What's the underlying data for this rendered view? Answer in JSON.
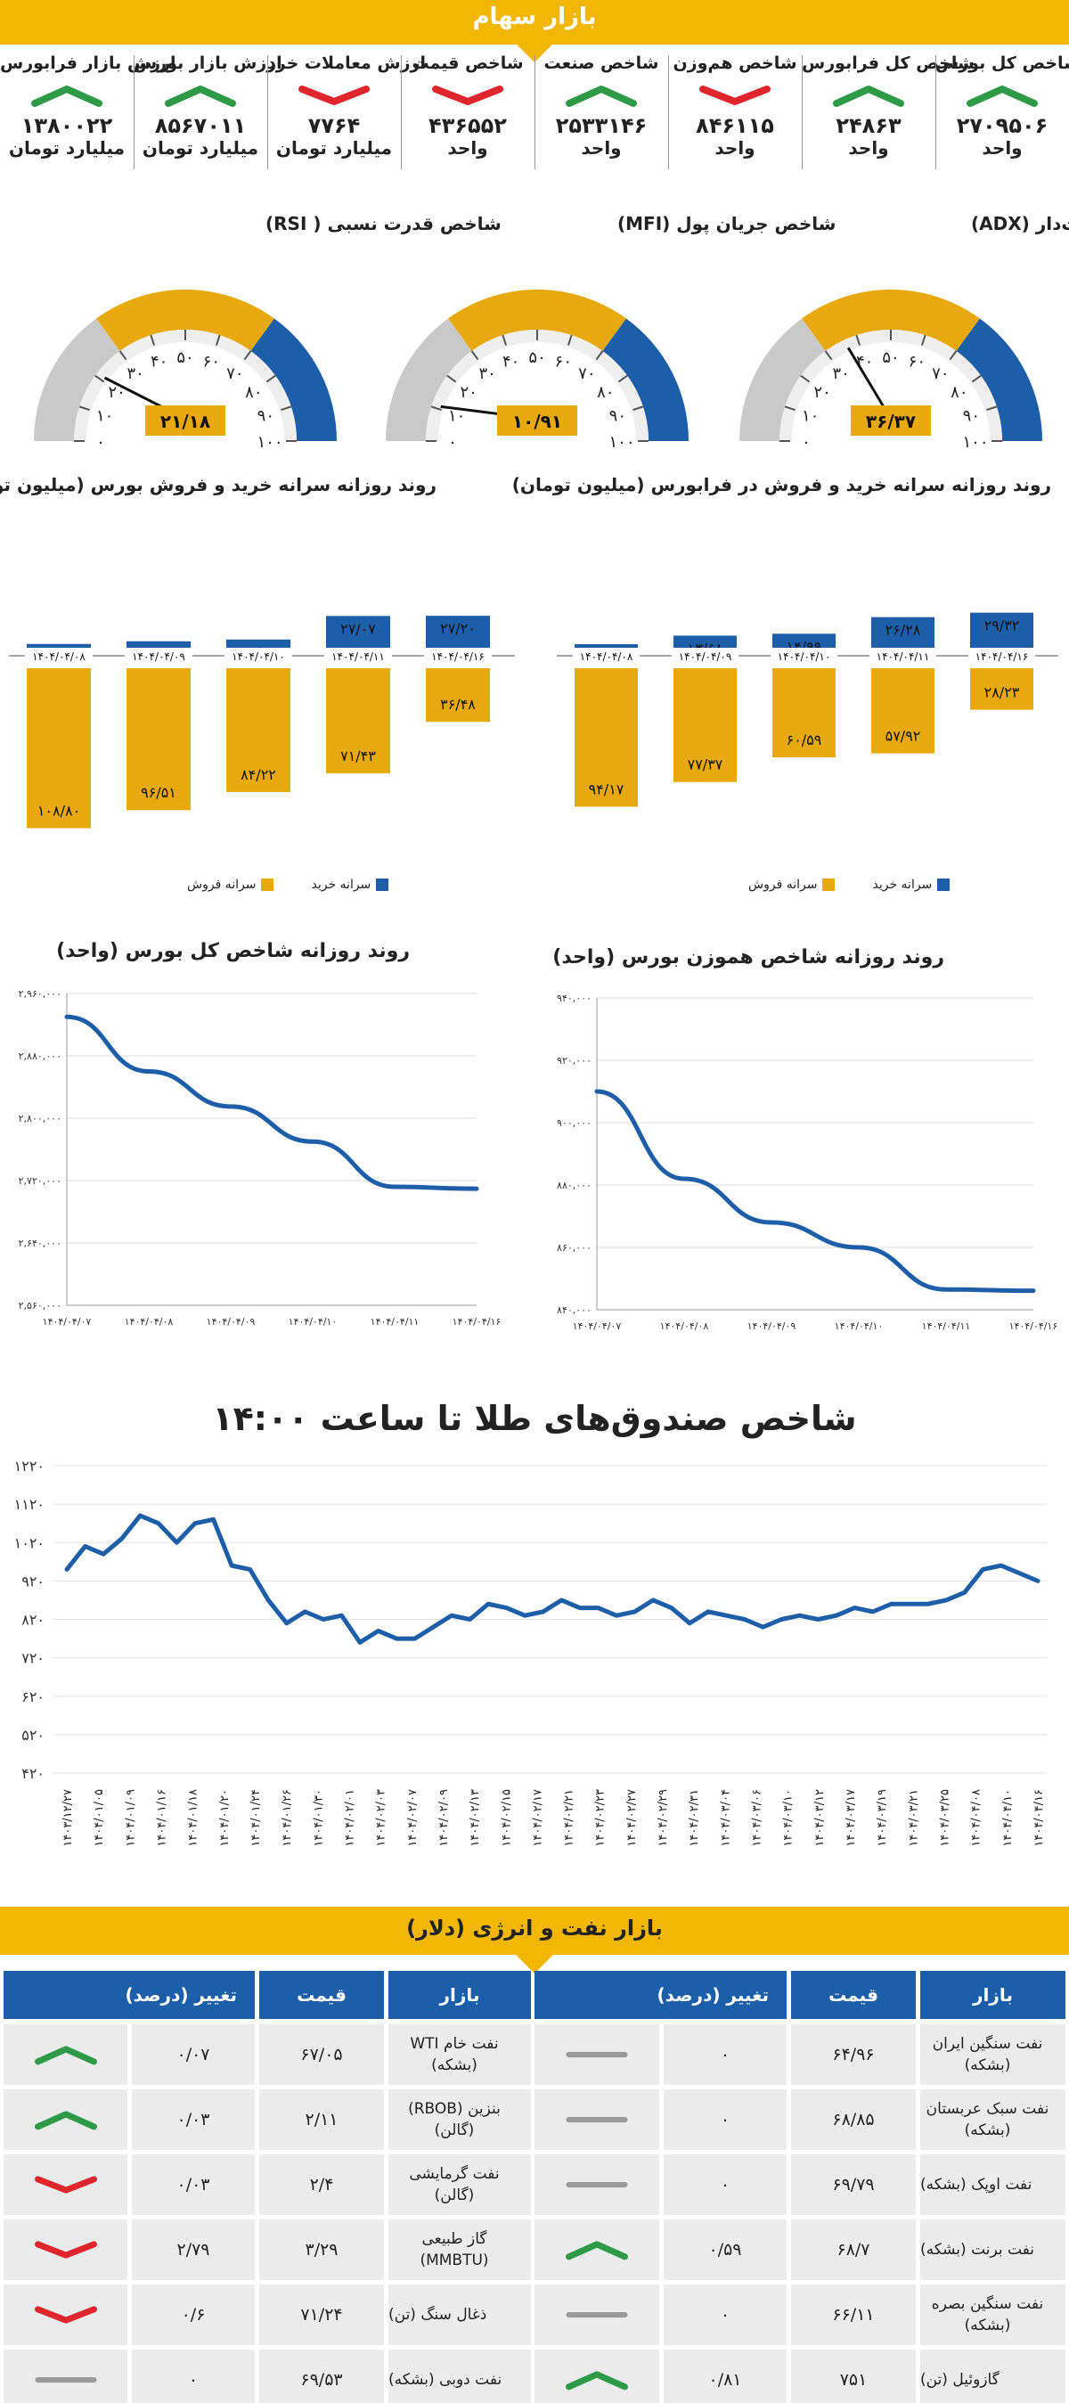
{
  "stock_market": {
    "title": "بازار سهام",
    "indices": [
      {
        "label": "شاخص کل بورس",
        "value": "۲۷۰۹۵۰۶",
        "unit": "واحد",
        "trend": "up"
      },
      {
        "label": "شاخص کل فرابورس",
        "value": "۲۴۸۶۳",
        "unit": "واحد",
        "trend": "up"
      },
      {
        "label": "شاخص هم‌وزن",
        "value": "۸۴۶۱۱۵",
        "unit": "واحد",
        "trend": "down"
      },
      {
        "label": "شاخص صنعت",
        "value": "۲۵۳۳۱۴۶",
        "unit": "واحد",
        "trend": "up"
      },
      {
        "label": "شاخص قیمت",
        "value": "۴۳۶۵۵۲",
        "unit": "واحد",
        "trend": "down"
      },
      {
        "label": "ارزش معاملات خرد",
        "value": "۷۷۶۴",
        "unit": "میلیارد تومان",
        "trend": "down"
      },
      {
        "label": "ارزش بازار بورس",
        "value": "۸۵۶۷۰۱۱",
        "unit": "میلیارد تومان",
        "trend": "up"
      },
      {
        "label": "ارزش بازار فرابورس",
        "value": "۱۳۸۰۰۲۲",
        "unit": "میلیارد تومان",
        "trend": "up"
      }
    ]
  },
  "gauges": [
    {
      "title": "شاخص میانگین حرکت جهت‌دار (ADX)",
      "value_label": "۳۶/۳۷",
      "value": 36.37,
      "ticks": [
        "۰",
        "۱۰",
        "۲۰",
        "۳۰",
        "۴۰",
        "۵۰",
        "۶۰",
        "۷۰",
        "۸۰",
        "۹۰",
        "۱۰۰"
      ]
    },
    {
      "title": "شاخص جریان پول (MFI)",
      "value_label": "۱۰/۹۱",
      "value": 10.91,
      "ticks": [
        "۰",
        "۱۰",
        "۲۰",
        "۳۰",
        "۴۰",
        "۵۰",
        "۶۰",
        "۷۰",
        "۸۰",
        "۹۰",
        "۱۰۰"
      ]
    },
    {
      "title": "شاخص قدرت نسبی ( RSI)",
      "value_label": "۲۱/۱۸",
      "value": 21.18,
      "ticks": [
        "۰",
        "۱۰",
        "۲۰",
        "۳۰",
        "۴۰",
        "۵۰",
        "۶۰",
        "۷۰",
        "۸۰",
        "۹۰",
        "۱۰۰"
      ]
    }
  ],
  "per_capita": {
    "farabourse_title": "روند روزانه سرانه خرید و فروش در فرابورس (میلیون تومان)",
    "bourse_title": "روند روزانه سرانه خرید و فروش بورس (میلیون تومان)",
    "legend_buy": "سرانه خرید",
    "legend_sell": "سرانه فروش",
    "colors": {
      "buy": "#1d5ea8",
      "sell": "#e8a90f"
    }
  },
  "line_charts": {
    "hamvazn_title": "روند روزانه شاخص هموزن بورس (واحد)",
    "kol_title": "روند روزانه شاخص کل بورس (واحد)"
  },
  "gold": {
    "title": "شاخص صندوق‌های طلا تا ساعت ۱۴:۰۰"
  },
  "oil_energy": {
    "title": "بازار نفت و انرژی (دلار)",
    "headers": {
      "market": "بازار",
      "price": "قیمت",
      "change": "تغییر (درصد)"
    },
    "right_rows": [
      {
        "name": "نفت سنگین ایران (بشکه)",
        "price": "۶۴/۹۶",
        "change": "۰",
        "trend": "flat"
      },
      {
        "name": "نفت سبک عربستان (بشکه)",
        "price": "۶۸/۸۵",
        "change": "۰",
        "trend": "flat"
      },
      {
        "name": "نفت اوپک (بشکه)",
        "price": "۶۹/۷۹",
        "change": "۰",
        "trend": "flat"
      },
      {
        "name": "نفت برنت (بشکه)",
        "price": "۶۸/۷",
        "change": "۰/۵۹",
        "trend": "up"
      },
      {
        "name": "نفت سنگین بصره (بشکه)",
        "price": "۶۶/۱۱",
        "change": "۰",
        "trend": "flat"
      },
      {
        "name": "گازوئیل (تن)",
        "price": "۷۵۱",
        "change": "۰/۸۱",
        "trend": "up"
      }
    ],
    "left_rows": [
      {
        "name": "نفت خام WTI (بشکه)",
        "price": "۶۷/۰۵",
        "change": "۰/۰۷",
        "trend": "up"
      },
      {
        "name": "بنزین (RBOB) (گالن)",
        "price": "۲/۱۱",
        "change": "۰/۰۳",
        "trend": "up"
      },
      {
        "name": "نفت گرمایشی (گالن)",
        "price": "۲/۴",
        "change": "۰/۰۳",
        "trend": "down"
      },
      {
        "name": "گاز طبیعی (MMBTU)",
        "price": "۳/۲۹",
        "change": "۲/۷۹",
        "trend": "down"
      },
      {
        "name": "ذغال سنگ (تن)",
        "price": "۷۱/۲۴",
        "change": "۰/۶",
        "trend": "down"
      },
      {
        "name": "نفت دوبی (بشکه)",
        "price": "۶۹/۵۳",
        "change": "۰",
        "trend": "flat"
      }
    ]
  },
  "colors": {
    "accent": "#f2b705",
    "blue": "#1d5ea8",
    "up": "#2e9a48",
    "down": "#e0262d",
    "flat": "#9a9a9a",
    "gold": "#e8a90f"
  },
  "chart_data": [
    {
      "type": "bar",
      "title": "روند روزانه سرانه خرید و فروش در فرابورس (میلیون تومان)",
      "categories": [
        "۱۴۰۴/۰۴/۰۸",
        "۱۴۰۴/۰۴/۰۹",
        "۱۴۰۴/۰۴/۱۰",
        "۱۴۰۴/۰۴/۱۱",
        "۱۴۰۴/۰۴/۱۶"
      ],
      "series": [
        {
          "name": "سرانه خرید",
          "values": [
            7.87,
            13.68,
            14.99,
            26.28,
            29.32
          ],
          "labels": [
            "۷/۸۷",
            "۱۳/۶۸",
            "۱۴/۹۹",
            "۲۶/۲۸",
            "۲۹/۳۲"
          ]
        },
        {
          "name": "سرانه فروش",
          "values": [
            -94.17,
            -77.37,
            -60.59,
            -57.92,
            -28.23
          ],
          "labels": [
            "۹۴/۱۷",
            "۷۷/۳۷",
            "۶۰/۵۹",
            "۵۷/۹۲",
            "۲۸/۲۳"
          ]
        }
      ],
      "ylim": [
        -120,
        40
      ]
    },
    {
      "type": "bar",
      "title": "روند روزانه سرانه خرید و فروش بورس (میلیون تومان)",
      "categories": [
        "۱۴۰۴/۰۴/۰۸",
        "۱۴۰۴/۰۴/۰۹",
        "۱۴۰۴/۰۴/۱۰",
        "۱۴۰۴/۰۴/۱۱",
        "۱۴۰۴/۰۴/۱۶"
      ],
      "series": [
        {
          "name": "سرانه خرید",
          "values": [
            8.04,
            9.86,
            11.05,
            27.07,
            27.2
          ],
          "labels": [
            "۸/۰۴",
            "۹/۸۶",
            "۱۱/۰۵",
            "۲۷/۰۷",
            "۲۷/۲۰"
          ]
        },
        {
          "name": "سرانه فروش",
          "values": [
            -108.8,
            -96.51,
            -84.22,
            -71.43,
            -36.48
          ],
          "labels": [
            "۱۰۸/۸۰",
            "۹۶/۵۱",
            "۸۴/۲۲",
            "۷۱/۴۳",
            "۳۶/۴۸"
          ]
        }
      ],
      "ylim": [
        -120,
        40
      ]
    },
    {
      "type": "line",
      "title": "روند روزانه شاخص هموزن بورس (واحد)",
      "x": [
        "۱۴۰۴/۰۴/۰۷",
        "۱۴۰۴/۰۴/۰۸",
        "۱۴۰۴/۰۴/۰۹",
        "۱۴۰۴/۰۴/۱۰",
        "۱۴۰۴/۰۴/۱۱",
        "۱۴۰۴/۰۴/۱۶"
      ],
      "y": [
        910000,
        882000,
        868000,
        860000,
        846500,
        846100
      ],
      "yticks": [
        "۸۴۰,۰۰۰",
        "۸۶۰,۰۰۰",
        "۸۸۰,۰۰۰",
        "۹۰۰,۰۰۰",
        "۹۲۰,۰۰۰",
        "۹۴۰,۰۰۰"
      ],
      "ylim": [
        840000,
        940000
      ]
    },
    {
      "type": "line",
      "title": "روند روزانه شاخص کل بورس (واحد)",
      "x": [
        "۱۴۰۴/۰۴/۰۷",
        "۱۴۰۴/۰۴/۰۸",
        "۱۴۰۴/۰۴/۰۹",
        "۱۴۰۴/۰۴/۱۰",
        "۱۴۰۴/۰۴/۱۱",
        "۱۴۰۴/۰۴/۱۶"
      ],
      "y": [
        2930000,
        2860000,
        2815000,
        2770000,
        2712000,
        2709506
      ],
      "yticks": [
        "۲,۵۶۰,۰۰۰",
        "۲,۶۴۰,۰۰۰",
        "۲,۷۲۰,۰۰۰",
        "۲,۸۰۰,۰۰۰",
        "۲,۸۸۰,۰۰۰",
        "۲,۹۶۰,۰۰۰"
      ],
      "ylim": [
        2560000,
        2960000
      ]
    },
    {
      "type": "line",
      "title": "شاخص صندوق‌های طلا تا ساعت ۱۴:۰۰",
      "yticks": [
        "۴۲۰",
        "۵۲۰",
        "۶۲۰",
        "۷۲۰",
        "۸۲۰",
        "۹۲۰",
        "۱۰۲۰",
        "۱۱۲۰",
        "۱۲۲۰"
      ],
      "ylim": [
        420,
        1220
      ],
      "xticks": [
        "۱۴۰۳/۱۲/۲۷",
        "۱۴۰۴/۰۱/۰۵",
        "۱۴۰۴/۰۱/۰۹",
        "۱۴۰۴/۰۱/۱۶",
        "۱۴۰۴/۰۱/۱۸",
        "۱۴۰۴/۰۱/۲۰",
        "۱۴۰۴/۰۱/۲۴",
        "۱۴۰۴/۰۱/۲۶",
        "۱۴۰۴/۰۱/۳۰",
        "۱۴۰۴/۰۲/۰۱",
        "۱۴۰۴/۰۲/۰۳",
        "۱۴۰۴/۰۲/۰۷",
        "۱۴۰۴/۰۲/۰۹",
        "۱۴۰۴/۰۲/۱۳",
        "۱۴۰۴/۰۲/۱۵",
        "۱۴۰۴/۰۲/۱۷",
        "۱۴۰۴/۰۲/۲۱",
        "۱۴۰۴/۰۲/۲۳",
        "۱۴۰۴/۰۲/۲۷",
        "۱۴۰۴/۰۲/۲۹",
        "۱۴۰۴/۰۲/۳۱",
        "۱۴۰۴/۰۳/۰۴",
        "۱۴۰۴/۰۳/۰۶",
        "۱۴۰۴/۰۳/۱۰",
        "۱۴۰۴/۰۳/۱۲",
        "۱۴۰۴/۰۳/۱۷",
        "۱۴۰۴/۰۳/۱۹",
        "۱۴۰۴/۰۳/۲۱",
        "۱۴۰۴/۰۳/۲۵",
        "۱۴۰۴/۰۴/۰۸",
        "۱۴۰۴/۰۴/۱۰",
        "۱۴۰۴/۰۴/۱۶"
      ],
      "y": [
        950,
        1010,
        990,
        1030,
        1090,
        1070,
        1020,
        1070,
        1080,
        960,
        950,
        870,
        810,
        840,
        820,
        830,
        760,
        790,
        770,
        770,
        800,
        830,
        820,
        860,
        850,
        830,
        840,
        870,
        850,
        850,
        830,
        840,
        870,
        850,
        810,
        840,
        830,
        820,
        800,
        820,
        830,
        820,
        830,
        850,
        840,
        860,
        860,
        860,
        870,
        890,
        950,
        960,
        940,
        920
      ]
    }
  ]
}
